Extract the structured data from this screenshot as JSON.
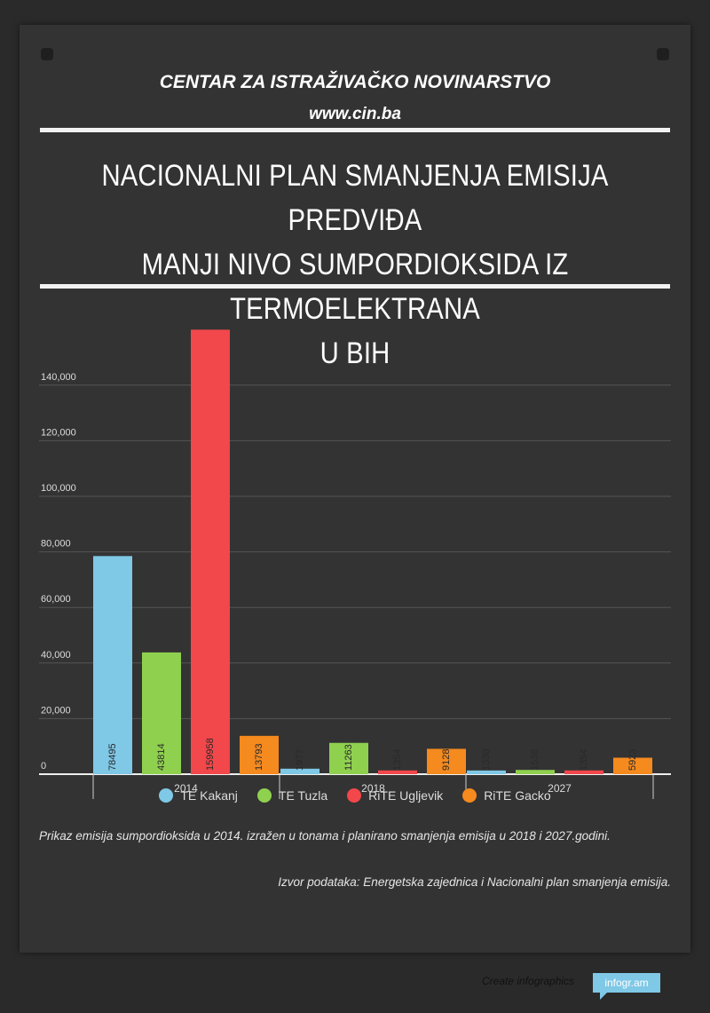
{
  "header": {
    "org": "CENTAR ZA ISTRAŽIVAČKO NOVINARSTVO",
    "site": "www.cin.ba",
    "title_lines": [
      "NACIONALNI PLAN SMANJENJA EMISIJA PREDVIĐA",
      "MANJI NIVO SUMPORDIOKSIDA IZ TERMOELEKTRANA",
      "U BIH"
    ]
  },
  "chart_data": {
    "type": "bar",
    "categories": [
      "2014",
      "2018",
      "2027"
    ],
    "series": [
      {
        "name": "TE Kakanj",
        "color": "#7fc8e6",
        "values": [
          78495,
          1977,
          1330
        ]
      },
      {
        "name": "TE Tuzla",
        "color": "#8fd14f",
        "values": [
          43814,
          11263,
          1536
        ]
      },
      {
        "name": "RiTE Ugljevik",
        "color": "#f2474b",
        "values": [
          159958,
          1354,
          1354
        ]
      },
      {
        "name": "RiTE Gacko",
        "color": "#f58a1f",
        "values": [
          13793,
          9128,
          5923
        ]
      }
    ],
    "y_ticks": [
      0,
      20000,
      40000,
      60000,
      80000,
      100000,
      120000,
      140000
    ],
    "y_tick_labels": [
      "0",
      "20,000",
      "40,000",
      "60,000",
      "80,000",
      "100,000",
      "120,000",
      "140,000"
    ],
    "ylim": [
      0,
      160000
    ],
    "grid": true,
    "legend": "bottom-center"
  },
  "caption": "Prikaz emisija sumpordioksida u 2014. izražen u tonama i planirano smanjenja emisija u 2018 i 2027.godini.",
  "source": "Izvor podataka: Energetska zajednica i Nacionalni plan smanjenja emisija.",
  "footer": {
    "text": "Create infographics",
    "badge": "infogr.am"
  }
}
